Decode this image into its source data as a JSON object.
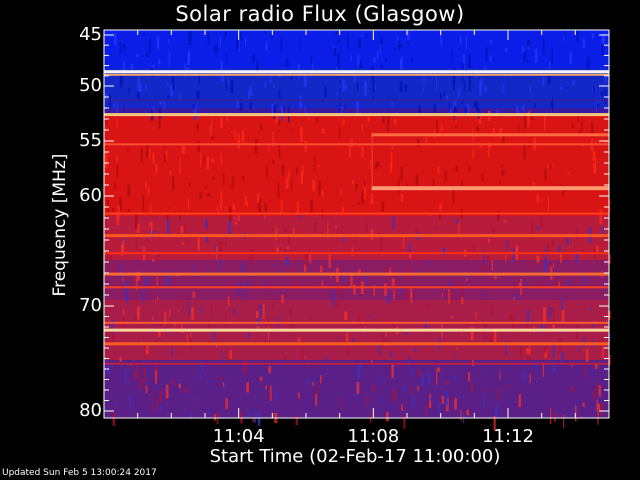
{
  "chart_data": {
    "type": "heatmap",
    "title": "Solar radio Flux (Glasgow)",
    "ylabel": "Frequency [MHz]",
    "xlabel": "Start Time (02-Feb-17 11:00:00)",
    "x_tick_labels": [
      "11:04",
      "11:08",
      "11:12"
    ],
    "x_ticks_minutes": [
      4,
      8,
      12
    ],
    "xlim_minutes": [
      0,
      15
    ],
    "y_tick_labels": [
      "45",
      "50",
      "55",
      "60",
      "70",
      "80"
    ],
    "y_ticks": [
      45,
      50,
      55,
      60,
      70,
      80
    ],
    "ylim": [
      45,
      80
    ],
    "grid": false
  },
  "footer": "Updated Sun Feb  5 13:00:24 2017"
}
